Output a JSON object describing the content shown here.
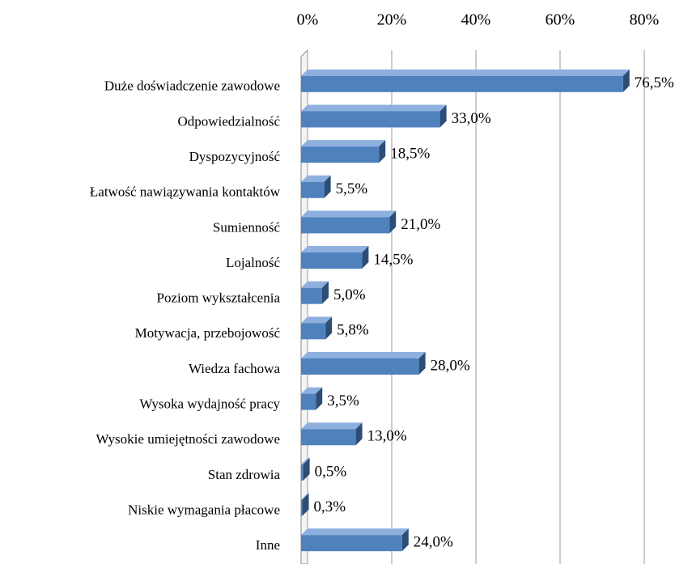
{
  "chart_data": {
    "type": "bar",
    "orientation": "horizontal",
    "categories": [
      "Duże doświadczenie zawodowe",
      "Odpowiedzialność",
      "Dyspozycyjność",
      "Łatwość nawiązywania kontaktów",
      "Sumienność",
      "Lojalność",
      "Poziom wykształcenia",
      "Motywacja, przebojowość",
      "Wiedza fachowa",
      "Wysoka wydajność pracy",
      "Wysokie umiejętności zawodowe",
      "Stan zdrowia",
      "Niskie wymagania płacowe",
      "Inne"
    ],
    "values": [
      76.5,
      33.0,
      18.5,
      5.5,
      21.0,
      14.5,
      5.0,
      5.8,
      28.0,
      3.5,
      13.0,
      0.5,
      0.3,
      24.0
    ],
    "value_labels": [
      "76,5%",
      "33,0%",
      "18,5%",
      "5,5%",
      "21,0%",
      "14,5%",
      "5,0%",
      "5,8%",
      "28,0%",
      "3,5%",
      "13,0%",
      "0,5%",
      "0,3%",
      "24,0%"
    ],
    "color": "#4f81bd",
    "xlim": [
      0,
      80
    ],
    "xticks": [
      {
        "value": 0,
        "label": "0%"
      },
      {
        "value": 20,
        "label": "20%"
      },
      {
        "value": 40,
        "label": "40%"
      },
      {
        "value": 60,
        "label": "60%"
      },
      {
        "value": 80,
        "label": "80%"
      }
    ],
    "grid": true
  }
}
